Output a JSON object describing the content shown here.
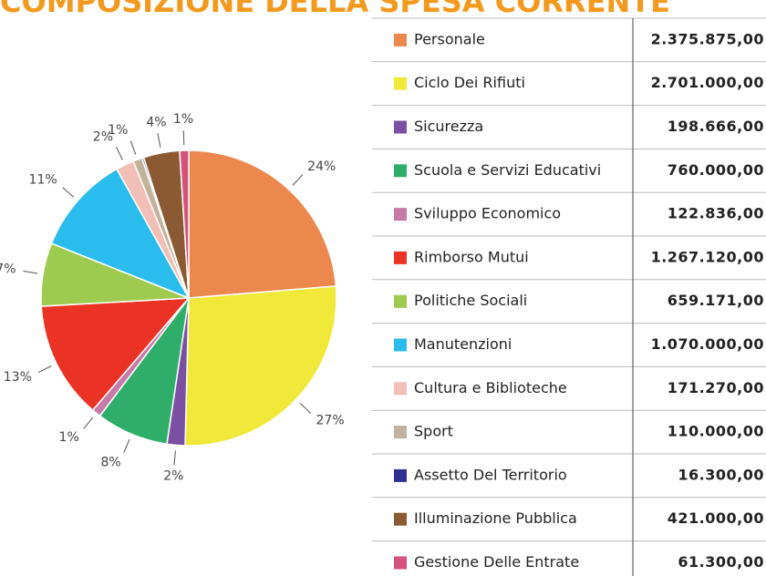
{
  "title": "COMPOSIZIONE DELLA SPESA CORRENTE",
  "chart_data": {
    "type": "pie",
    "categories": [
      "Personale",
      "Ciclo Dei Rifiuti",
      "Sicurezza",
      "Scuola e Servizi Educativi",
      "Sviluppo Economico",
      "Rimborso Mutui",
      "Politiche Sociali",
      "Manutenzioni",
      "Cultura e Biblioteche",
      "Sport",
      "Assetto Del Territorio",
      "Illuminazione Pubblica",
      "Gestione Delle Entrate"
    ],
    "values": [
      24,
      27,
      2,
      8,
      1,
      13,
      7,
      11,
      2,
      1,
      0.2,
      4,
      1
    ],
    "value_labels": [
      "24%",
      "27%",
      "2%",
      "8%",
      "1%",
      "13%",
      "7%",
      "11%",
      "2%",
      "1%",
      null,
      "4%",
      "1%"
    ],
    "colors": [
      "#ec884e",
      "#f0e93a",
      "#7b4fa1",
      "#2fae6a",
      "#c77aa6",
      "#ea3324",
      "#9dcb4f",
      "#2bbcee",
      "#f1bfb6",
      "#c2b29b",
      "#2e3192",
      "#8b5a32",
      "#d4527c"
    ]
  },
  "table": {
    "amounts": [
      "2.375.875,00",
      "2.701.000,00",
      "198.666,00",
      "760.000,00",
      "122.836,00",
      "1.267.120,00",
      "659.171,00",
      "1.070.000,00",
      "171.270,00",
      "110.000,00",
      "16.300,00",
      "421.000,00",
      "61.300,00"
    ]
  }
}
